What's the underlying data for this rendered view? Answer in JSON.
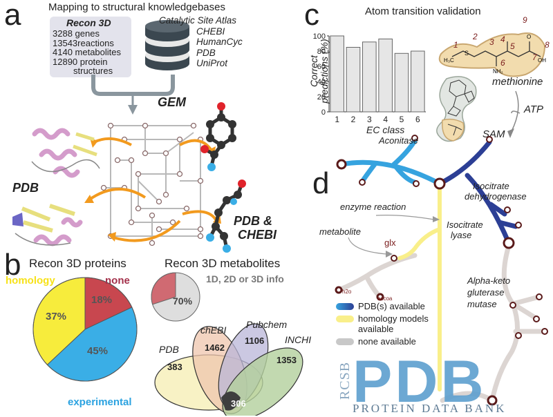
{
  "panel_a": {
    "letter": "a",
    "title": "Mapping to structural knowledgebases",
    "recon": {
      "heading": "Recon 3D",
      "lines": [
        "3288 genes",
        "13543reactions",
        "4140 metabolites",
        "12890 protein",
        "structures"
      ]
    },
    "db_list": [
      "Catalytic Site Atlas",
      "CHEBI",
      "HumanCyc",
      "PDB",
      "UniProt"
    ],
    "gem_label": "GEM",
    "pdb_label": "PDB",
    "pdb_chebi_line1": "PDB &",
    "pdb_chebi_line2": "CHEBI"
  },
  "panel_b": {
    "letter": "b",
    "proteins_title": "Recon 3D proteins",
    "proteins_pie": [
      {
        "label": "homology",
        "percent_label": "37%",
        "value": 37,
        "color": "#f7ec3c"
      },
      {
        "label": "none",
        "percent_label": "18%",
        "value": 18,
        "color": "#c8474f"
      },
      {
        "label": "experimental",
        "percent_label": "45%",
        "value": 45,
        "color": "#3aaee6"
      }
    ],
    "metabolites_title": "Recon 3D metabolites",
    "metabolites_subtitle": "1D, 2D or 3D info",
    "metabolites_pie_label": "70%",
    "metabolites_pie_value": 70,
    "venn": {
      "sets": [
        {
          "label": "PDB",
          "count": "383",
          "color": "#f6efb6"
        },
        {
          "label": "chEBI",
          "count": "1462",
          "color": "#efc6ae"
        },
        {
          "label": "Pubchem",
          "count": "1106",
          "color": "#b9b6d8"
        },
        {
          "label": "INCHI",
          "count": "1353",
          "color": "#b3cf9c"
        }
      ],
      "intersection": "306"
    }
  },
  "panel_c": {
    "letter": "c",
    "chart_title": "Atom transition validation",
    "ylabel_line1": "Correct",
    "ylabel_line2": "predictions (%)",
    "molecule_name": "methionine",
    "cofactor": "ATP",
    "product": "SAM",
    "atom_numbers": [
      "1",
      "2",
      "3",
      "4",
      "5",
      "6",
      "7",
      "8",
      "9"
    ]
  },
  "chart_data": {
    "type": "bar",
    "title": "Atom transition validation",
    "xlabel": "EC class",
    "ylabel": "Correct predictions (%)",
    "categories": [
      "1",
      "2",
      "3",
      "4",
      "5",
      "6"
    ],
    "values": [
      100,
      85,
      92,
      96,
      77,
      80
    ],
    "ylim": [
      0,
      100
    ],
    "yticks": [
      "0",
      "20",
      "40",
      "60",
      "80",
      "100"
    ],
    "bar_color": "#e6e6e6",
    "grid": false
  },
  "panel_d": {
    "letter": "d",
    "labels": {
      "aconitase": "Aconitase",
      "icdh_line1": "Isocitrate",
      "icdh_line2": "dehydrogenase",
      "enzyme_reaction": "enzyme reaction",
      "metabolite": "metabolite",
      "glx": "glx",
      "h2o": "h2o",
      "accoa": "accoa",
      "lyase_line1": "Isocitrate",
      "lyase_line2": "lyase",
      "akg_line1": "Alpha-keto",
      "akg_line2": "gluterase",
      "akg_line3": "mutase"
    },
    "legend": [
      {
        "line1": "PDB(s) available",
        "line2": "",
        "color": "#2c3f95"
      },
      {
        "line1": "homology models",
        "line2": "available",
        "color": "#f9ef8a"
      },
      {
        "line1": "none available",
        "line2": "",
        "color": "#c8c8c8"
      }
    ],
    "logo": {
      "side": "RCSB",
      "big": "PDB",
      "bottom": "PROTEIN DATA BANK"
    },
    "colors": {
      "pdb": "#2c3f95",
      "pdb_light": "#36a3df",
      "homology": "#f9ef8a",
      "none": "#dcd5d2",
      "node": "#5a1a1a"
    }
  }
}
